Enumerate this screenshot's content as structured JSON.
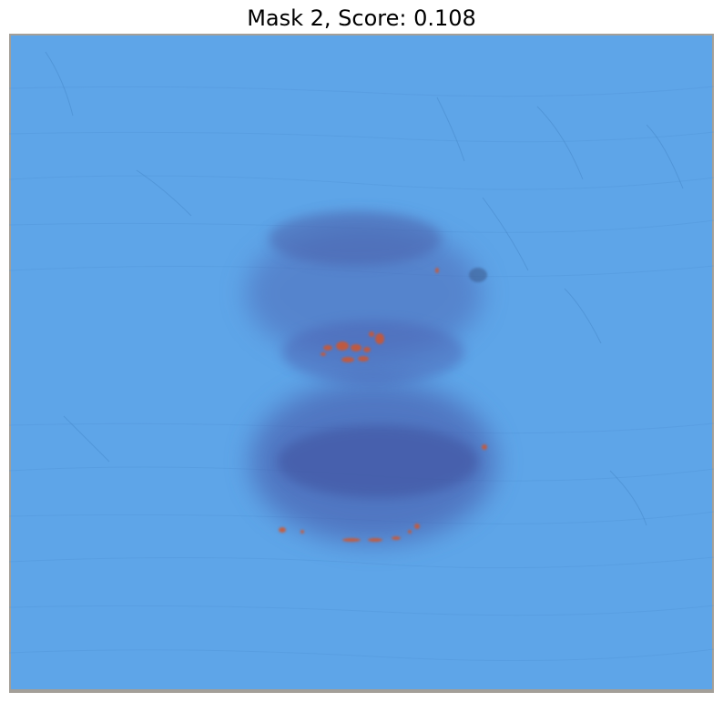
{
  "figure": {
    "title": "Mask 2, Score: 0.108"
  },
  "image": {
    "subject": "skin-lesion-photo",
    "mask_color": "#5aa2e6",
    "highlight_color": "#d2552a",
    "lesion_color": "#4f62b0"
  }
}
